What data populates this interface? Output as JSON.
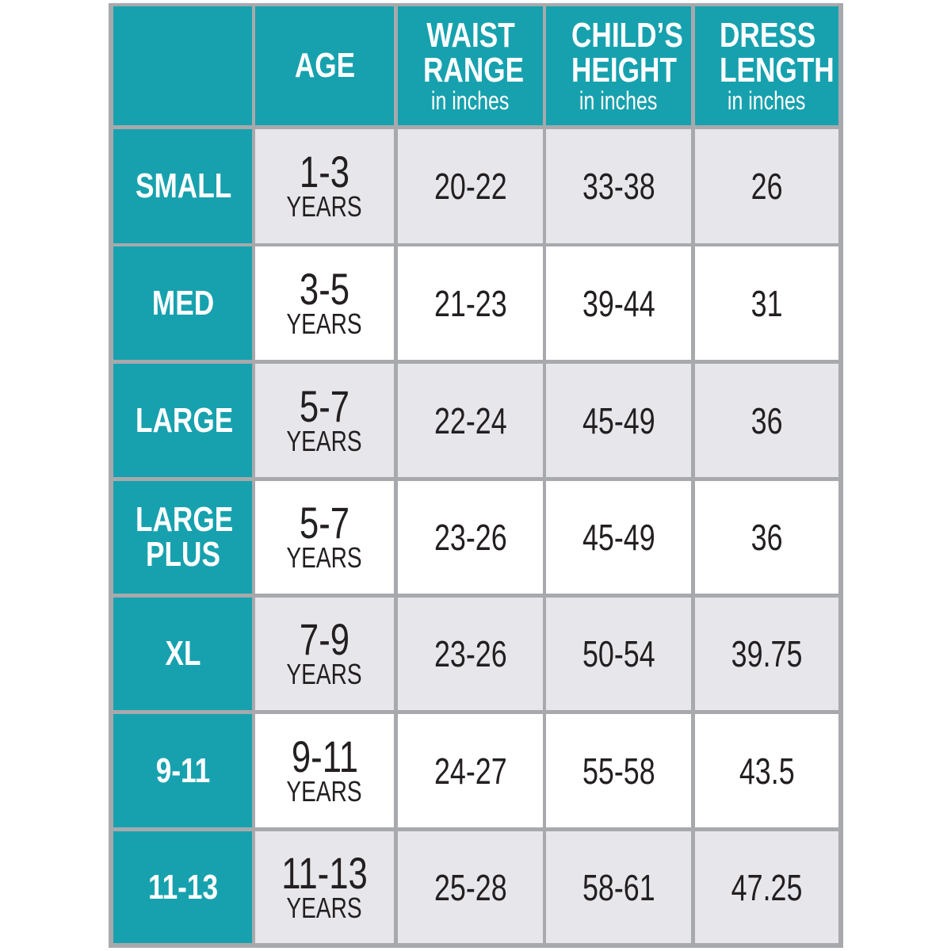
{
  "header": {
    "columns": [
      {
        "title": "AGE"
      },
      {
        "title": "WAIST RANGE",
        "unit": "in inches"
      },
      {
        "title": "CHILD’S HEIGHT",
        "unit": "in inches"
      },
      {
        "title": "DRESS LENGTH",
        "unit": "in inches"
      }
    ]
  },
  "rows": [
    {
      "size": "SMALL",
      "age": "1-3",
      "age_unit": "YEARS",
      "waist": "20-22",
      "height": "33-38",
      "length": "26"
    },
    {
      "size": "MED",
      "age": "3-5",
      "age_unit": "YEARS",
      "waist": "21-23",
      "height": "39-44",
      "length": "31"
    },
    {
      "size": "LARGE",
      "age": "5-7",
      "age_unit": "YEARS",
      "waist": "22-24",
      "height": "45-49",
      "length": "36"
    },
    {
      "size": "LARGE PLUS",
      "age": "5-7",
      "age_unit": "YEARS",
      "waist": "23-26",
      "height": "45-49",
      "length": "36"
    },
    {
      "size": "XL",
      "age": "7-9",
      "age_unit": "YEARS",
      "waist": "23-26",
      "height": "50-54",
      "length": "39.75"
    },
    {
      "size": "9-11",
      "age": "9-11",
      "age_unit": "YEARS",
      "waist": "24-27",
      "height": "55-58",
      "length": "43.5"
    },
    {
      "size": "11-13",
      "age": "11-13",
      "age_unit": "YEARS",
      "waist": "25-28",
      "height": "58-61",
      "length": "47.25"
    }
  ]
}
